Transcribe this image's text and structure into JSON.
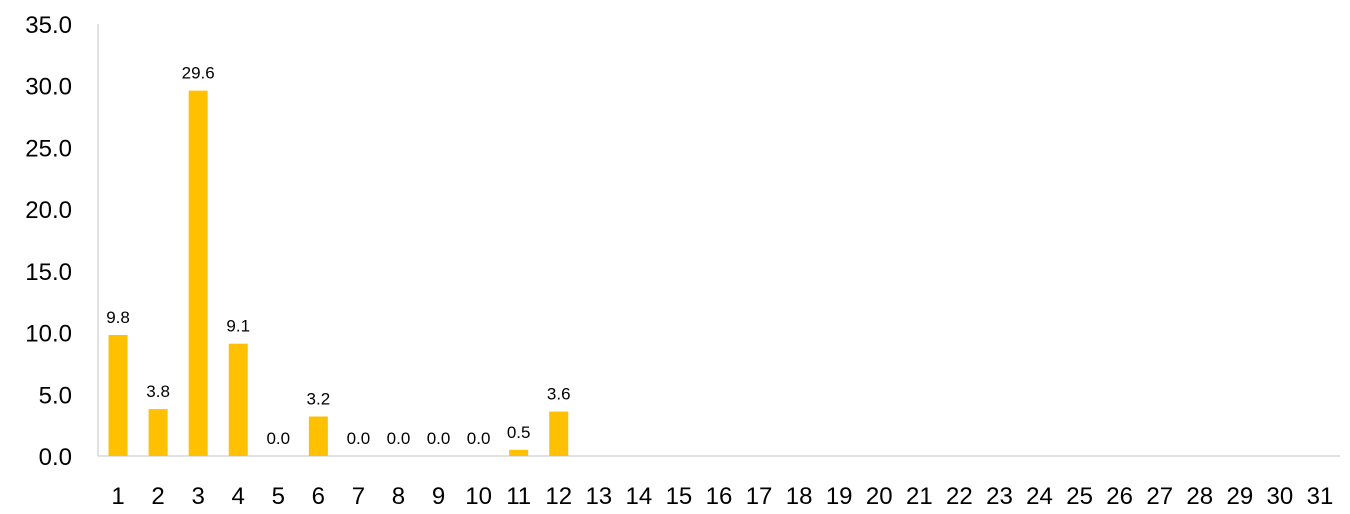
{
  "chart_data": {
    "type": "bar",
    "title": "",
    "xlabel": "",
    "ylabel": "",
    "ylim": [
      0,
      35
    ],
    "yticks": [
      "0.0",
      "5.0",
      "10.0",
      "15.0",
      "20.0",
      "25.0",
      "30.0",
      "35.0"
    ],
    "grid": false,
    "legend": "none",
    "bar_color": "#FFC000",
    "categories": [
      "1",
      "2",
      "3",
      "4",
      "5",
      "6",
      "7",
      "8",
      "9",
      "10",
      "11",
      "12",
      "13",
      "14",
      "15",
      "16",
      "17",
      "18",
      "19",
      "20",
      "21",
      "22",
      "23",
      "24",
      "25",
      "26",
      "27",
      "28",
      "29",
      "30",
      "31"
    ],
    "values": [
      9.8,
      3.8,
      29.6,
      9.1,
      0.0,
      3.2,
      0.0,
      0.0,
      0.0,
      0.0,
      0.5,
      3.6,
      null,
      null,
      null,
      null,
      null,
      null,
      null,
      null,
      null,
      null,
      null,
      null,
      null,
      null,
      null,
      null,
      null,
      null,
      null
    ],
    "data_labels": [
      "9.8",
      "3.8",
      "29.6",
      "9.1",
      "0.0",
      "3.2",
      "0.0",
      "0.0",
      "0.0",
      "0.0",
      "0.5",
      "3.6",
      "",
      "",
      "",
      "",
      "",
      "",
      "",
      "",
      "",
      "",
      "",
      "",
      "",
      "",
      "",
      "",
      "",
      "",
      ""
    ]
  }
}
